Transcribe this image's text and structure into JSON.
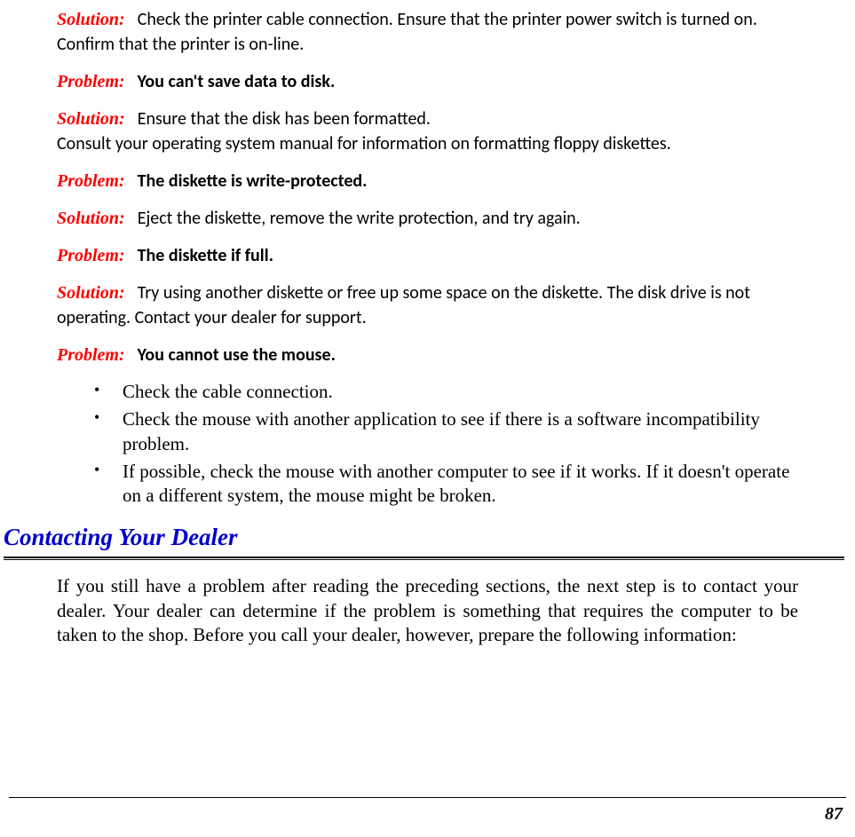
{
  "labels": {
    "solution": "Solution:",
    "problem": "Problem:"
  },
  "entries": {
    "sol0": "Check the printer cable connection.  Ensure that the printer power switch is turned on.  Confirm that the printer is on-line.",
    "prob1": "You can't save data to disk.",
    "sol1a": "Ensure that the disk has been formatted.",
    "sol1b": "Consult your operating system manual for information on formatting floppy diskettes.",
    "prob2": "The diskette is write-protected.",
    "sol2": "Eject the diskette, remove the write protection, and try again.",
    "prob3": "The diskette if full.",
    "sol3": "Try using another diskette or free up some space on the diskette.  The disk drive is not operating.  Contact your dealer for support.",
    "prob4": "You cannot use the mouse."
  },
  "bullets": {
    "b1": "Check the cable connection.",
    "b2": "Check the mouse with another application to see if there is a software incompatibility problem.",
    "b3": "If possible, check the mouse with another computer to see if it works.  If it doesn't operate on a different system, the mouse might be broken."
  },
  "heading": "Contacting Your Dealer",
  "body": "If you still have a problem after reading the preceding sections, the next step is to contact your dealer.  Your dealer can determine if the problem is something that requires the computer to be taken to the shop. Before you call your dealer, however, prepare the following information:",
  "pageNumber": "87",
  "colors": {
    "label_red": "#ff0000",
    "heading_blue": "#0000cc",
    "text_black": "#000000",
    "background": "#ffffff"
  }
}
